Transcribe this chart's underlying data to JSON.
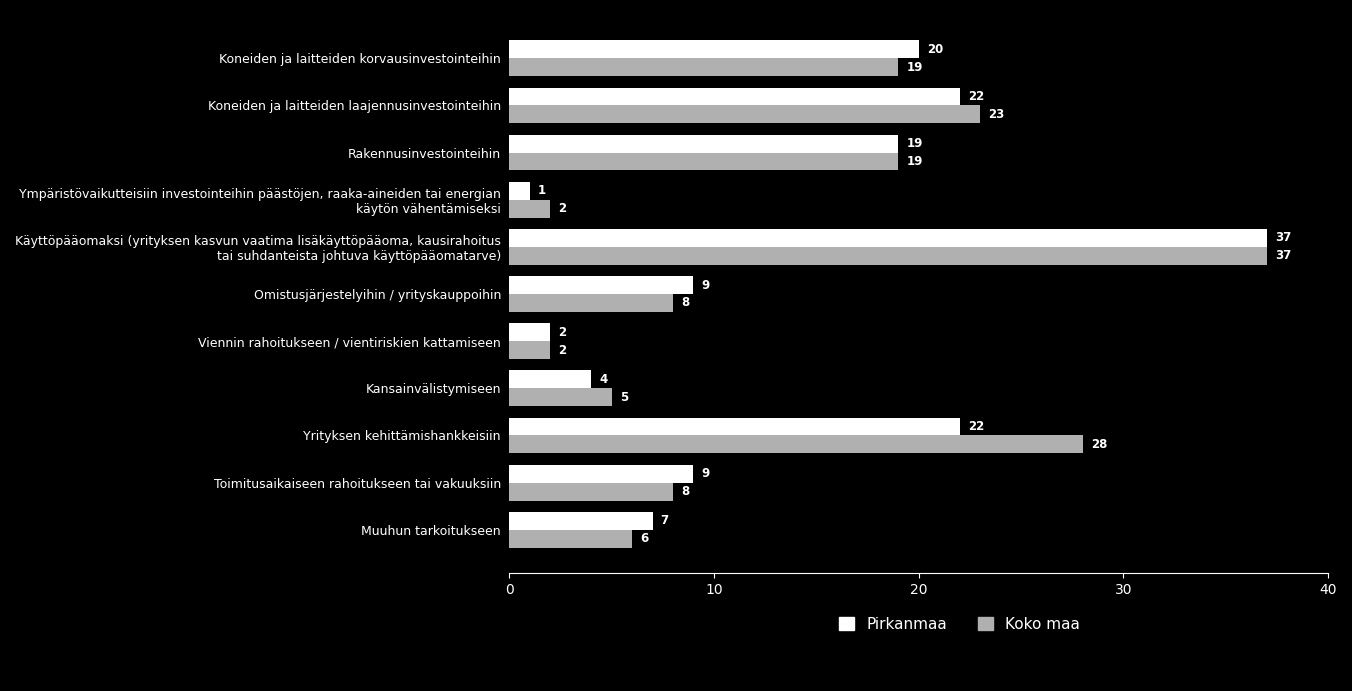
{
  "categories": [
    "Koneiden ja laitteiden korvausinvestointeihin",
    "Koneiden ja laitteiden laajennusinvestointeihin",
    "Rakennusinvestointeihin",
    "Ympäristövaikutteisiin investointeihin päästöjen, raaka-aineiden tai energian\nkäytön vähentämiseksi",
    "Käyttöpääomaksi (yrityksen kasvun vaatima lisäkäyttöpääoma, kausirahoitus\ntai suhdanteista johtuva käyttöpääomatarve)",
    "Omistusjärjestelyihin / yrityskauppoihin",
    "Viennin rahoitukseen / vientiriskien kattamiseen",
    "Kansainvälistymiseen",
    "Yrityksen kehittämishankkeisiin",
    "Toimitusaikaiseen rahoitukseen tai vakuuksiin",
    "Muuhun tarkoitukseen"
  ],
  "pirkanmaa": [
    20,
    22,
    19,
    1,
    37,
    9,
    2,
    4,
    22,
    9,
    7
  ],
  "koko_maa": [
    19,
    23,
    19,
    2,
    37,
    8,
    2,
    5,
    28,
    8,
    6
  ],
  "pirkanmaa_color": "#ffffff",
  "koko_maa_color": "#b0b0b0",
  "background_color": "#000000",
  "text_color": "#ffffff",
  "bar_height": 0.38,
  "xlim": [
    0,
    40
  ],
  "xticks": [
    0,
    10,
    20,
    30,
    40
  ],
  "legend_labels": [
    "Pirkanmaa",
    "Koko maa"
  ],
  "label_fontsize": 9,
  "tick_fontsize": 10,
  "value_fontsize": 8.5
}
